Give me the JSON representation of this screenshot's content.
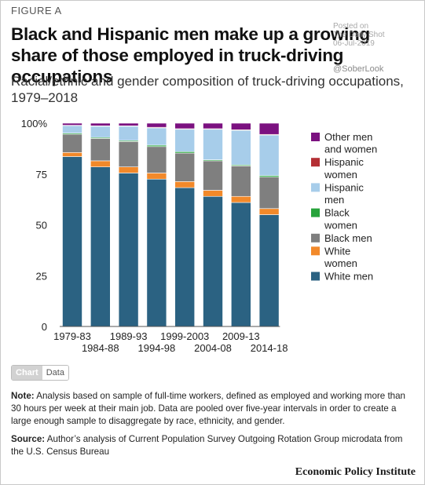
{
  "figure_label": "FIGURE A",
  "title": "Black and Hispanic men make up a growing share of those employed in truck-driving occupations",
  "subtitle": "Racial/ethnic and gender composition of truck-driving occupations, 1979–2018",
  "watermark": {
    "lines": [
      "Posted on",
      "The Daily Shot",
      "06-Jul-2019"
    ],
    "handle": "@SoberLook"
  },
  "tabs": {
    "chart": "Chart",
    "data": "Data"
  },
  "note": {
    "label": "Note:",
    "text": "Analysis based on sample of full-time workers, defined as employed and working more than 30 hours per week at their main job. Data are pooled over five-year intervals in order to create a large enough sample to disaggregate by race, ethnicity, and gender."
  },
  "source": {
    "label": "Source:",
    "text": "Author’s analysis of Current Population Survey Outgoing Rotation Group microdata from the U.S. Census Bureau"
  },
  "brand": "Economic Policy Institute",
  "chart_data": {
    "type": "bar",
    "stacked": true,
    "categories": [
      "1979-83",
      "1984-88",
      "1989-93",
      "1994-98",
      "1999-2003",
      "2004-08",
      "2009-13",
      "2014-18"
    ],
    "ylim": [
      0,
      100
    ],
    "yticks": [
      0,
      25,
      50,
      75,
      100
    ],
    "ytick_labels": [
      "0",
      "25",
      "50",
      "75",
      "100%"
    ],
    "legend_position": "right",
    "series": [
      {
        "name": "White men",
        "color": "#2b6282",
        "values": [
          83.6,
          78.5,
          75.5,
          72.5,
          68.3,
          64.0,
          61.0,
          55.0
        ]
      },
      {
        "name": "White women",
        "color": "#f2892a",
        "values": [
          2.0,
          3.0,
          3.0,
          3.0,
          3.0,
          3.0,
          3.0,
          3.0
        ]
      },
      {
        "name": "Black men",
        "color": "#7f7f7f",
        "values": [
          9.0,
          11.0,
          12.5,
          13.0,
          14.0,
          14.5,
          15.0,
          15.5
        ]
      },
      {
        "name": "Black women",
        "color": "#27a33b",
        "values": [
          0.5,
          0.5,
          0.5,
          0.7,
          0.7,
          0.5,
          0.5,
          0.7
        ]
      },
      {
        "name": "Hispanic men",
        "color": "#a7cdea",
        "values": [
          3.7,
          5.5,
          7.0,
          8.5,
          11.0,
          15.0,
          17.0,
          20.0
        ]
      },
      {
        "name": "Hispanic women",
        "color": "#b42f34",
        "values": [
          0.2,
          0.2,
          0.2,
          0.3,
          0.3,
          0.3,
          0.3,
          0.3
        ]
      },
      {
        "name": "Other men and women",
        "color": "#7b1180",
        "values": [
          1.0,
          1.3,
          1.3,
          2.0,
          2.7,
          2.7,
          3.2,
          5.5
        ]
      }
    ]
  }
}
